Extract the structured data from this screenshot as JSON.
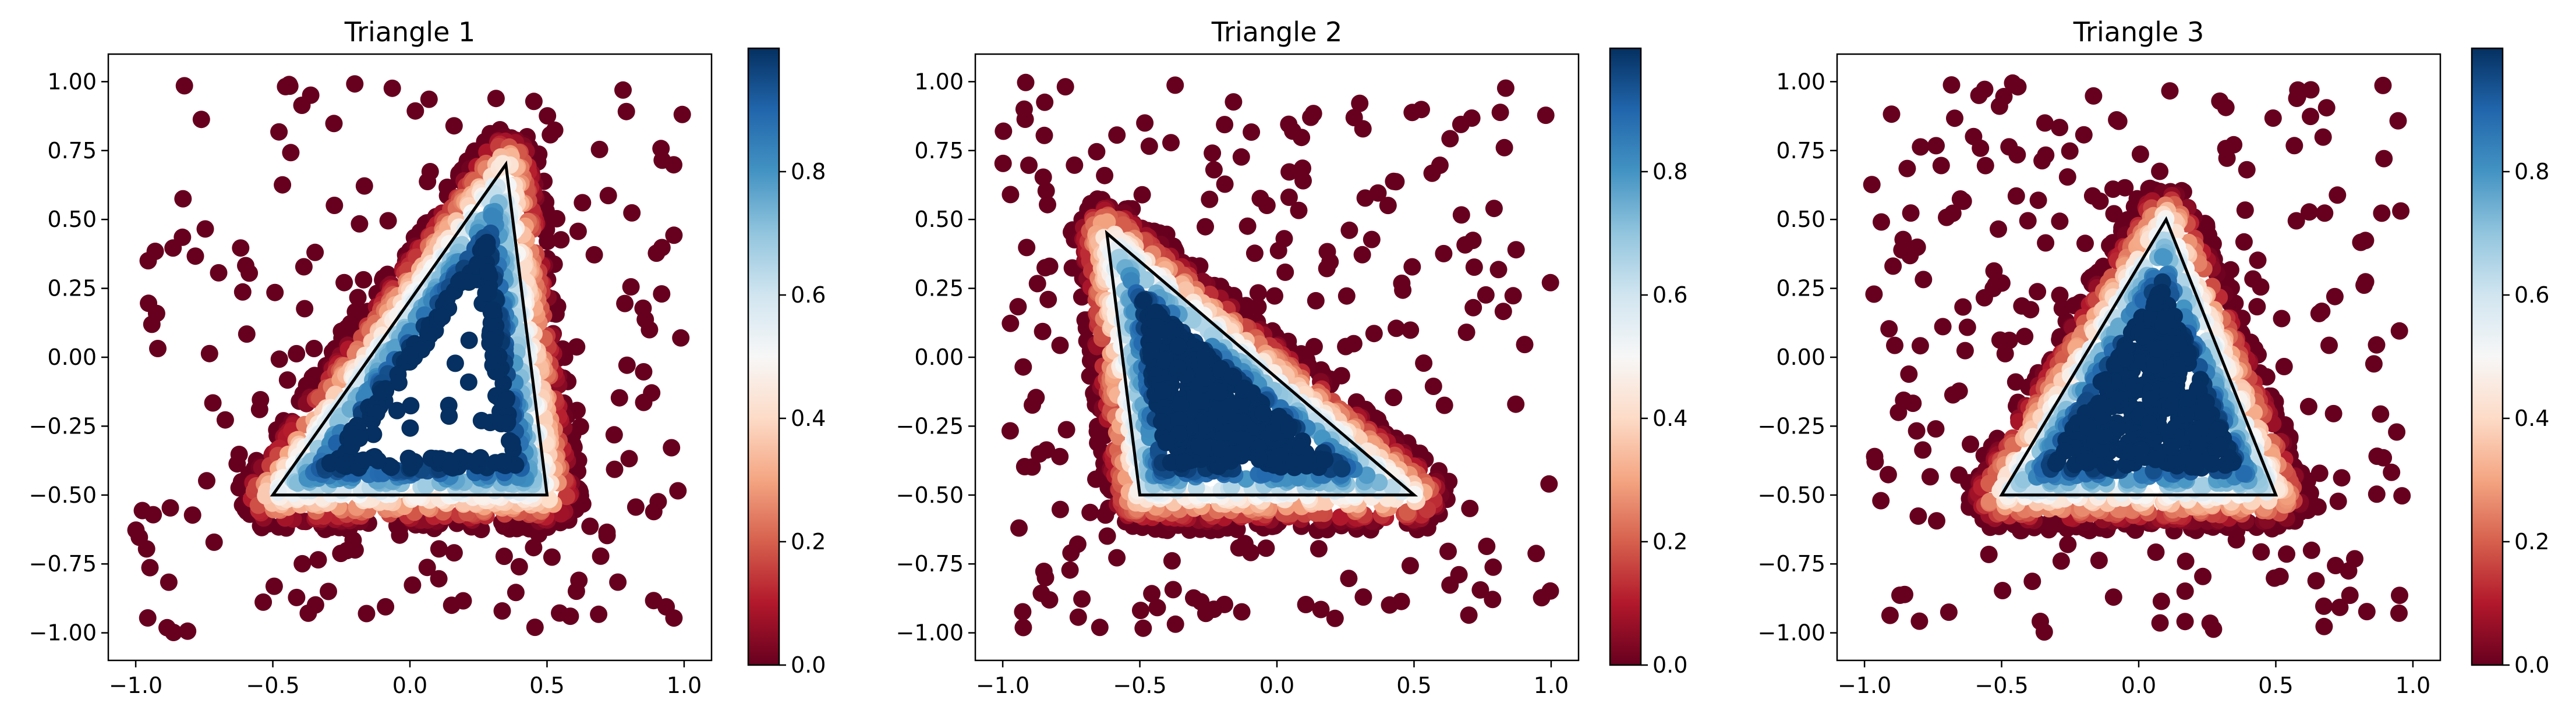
{
  "chart_data": [
    {
      "type": "scatter",
      "title": "Triangle 1",
      "xlim": [
        -1.1,
        1.1
      ],
      "ylim": [
        -1.1,
        1.1
      ],
      "xticks": [
        "−1.0",
        "−0.5",
        "0.0",
        "0.5",
        "1.0"
      ],
      "xtick_values": [
        -1.0,
        -0.5,
        0.0,
        0.5,
        1.0
      ],
      "yticks": [
        "−1.00",
        "−0.75",
        "−0.50",
        "−0.25",
        "0.00",
        "0.25",
        "0.50",
        "0.75",
        "1.00"
      ],
      "ytick_values": [
        -1.0,
        -0.75,
        -0.5,
        -0.25,
        0.0,
        0.25,
        0.5,
        0.75,
        1.0
      ],
      "triangle": [
        [
          -0.5,
          -0.5
        ],
        [
          0.5,
          -0.5
        ],
        [
          0.35,
          0.7
        ]
      ],
      "colorbar": {
        "min": 0.0,
        "max": 1.0,
        "ticks": [
          "0.0",
          "0.2",
          "0.4",
          "0.6",
          "0.8"
        ],
        "tick_values": [
          0.0,
          0.2,
          0.4,
          0.6,
          0.8
        ],
        "colormap": "RdBu"
      },
      "seed": 11,
      "inner_hole": true
    },
    {
      "type": "scatter",
      "title": "Triangle 2",
      "xlim": [
        -1.1,
        1.1
      ],
      "ylim": [
        -1.1,
        1.1
      ],
      "xticks": [
        "−1.0",
        "−0.5",
        "0.0",
        "0.5",
        "1.0"
      ],
      "xtick_values": [
        -1.0,
        -0.5,
        0.0,
        0.5,
        1.0
      ],
      "yticks": [
        "−1.00",
        "−0.75",
        "−0.50",
        "−0.25",
        "0.00",
        "0.25",
        "0.50",
        "0.75",
        "1.00"
      ],
      "ytick_values": [
        -1.0,
        -0.75,
        -0.5,
        -0.25,
        0.0,
        0.25,
        0.5,
        0.75,
        1.0
      ],
      "triangle": [
        [
          -0.5,
          -0.5
        ],
        [
          0.5,
          -0.5
        ],
        [
          -0.62,
          0.45
        ]
      ],
      "colorbar": {
        "min": 0.0,
        "max": 1.0,
        "ticks": [
          "0.0",
          "0.2",
          "0.4",
          "0.6",
          "0.8"
        ],
        "tick_values": [
          0.0,
          0.2,
          0.4,
          0.6,
          0.8
        ],
        "colormap": "RdBu"
      },
      "seed": 23,
      "inner_hole": false
    },
    {
      "type": "scatter",
      "title": "Triangle 3",
      "xlim": [
        -1.1,
        1.1
      ],
      "ylim": [
        -1.1,
        1.1
      ],
      "xticks": [
        "−1.0",
        "−0.5",
        "0.0",
        "0.5",
        "1.0"
      ],
      "xtick_values": [
        -1.0,
        -0.5,
        0.0,
        0.5,
        1.0
      ],
      "yticks": [
        "−1.00",
        "−0.75",
        "−0.50",
        "−0.25",
        "0.00",
        "0.25",
        "0.50",
        "0.75",
        "1.00"
      ],
      "ytick_values": [
        -1.0,
        -0.75,
        -0.5,
        -0.25,
        0.0,
        0.25,
        0.5,
        0.75,
        1.0
      ],
      "triangle": [
        [
          -0.5,
          -0.5
        ],
        [
          0.5,
          -0.5
        ],
        [
          0.1,
          0.5
        ]
      ],
      "colorbar": {
        "min": 0.0,
        "max": 1.0,
        "ticks": [
          "0.0",
          "0.2",
          "0.4",
          "0.6",
          "0.8"
        ],
        "tick_values": [
          0.0,
          0.2,
          0.4,
          0.6,
          0.8
        ],
        "colormap": "RdBu"
      },
      "seed": 37,
      "inner_hole": false
    }
  ]
}
